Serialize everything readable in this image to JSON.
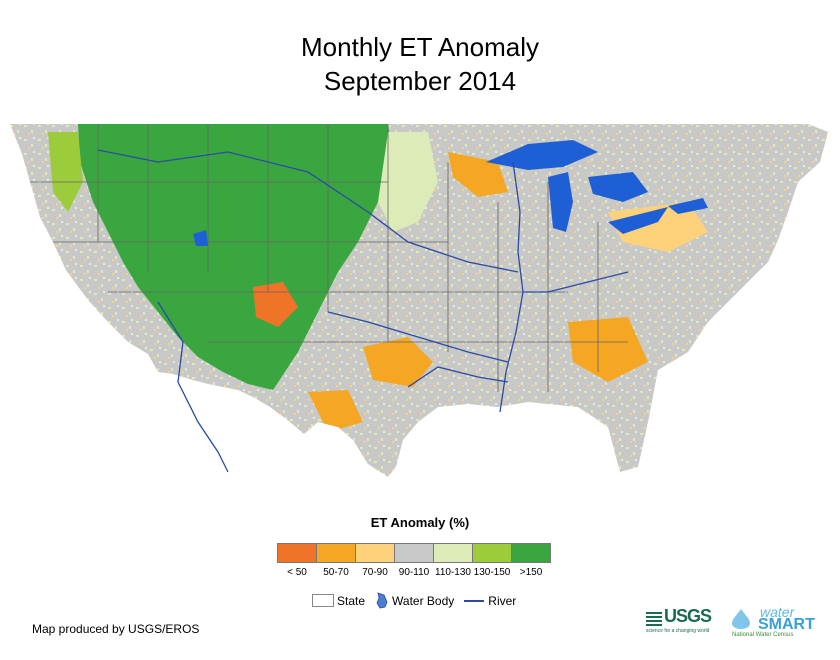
{
  "title_line1": "Monthly ET Anomaly",
  "title_line2": "September 2014",
  "legend": {
    "title": "ET Anomaly (%)",
    "classes": [
      {
        "label": "< 50",
        "color": "#f07427"
      },
      {
        "label": "50-70",
        "color": "#f5a623"
      },
      {
        "label": "70-90",
        "color": "#fdd27a"
      },
      {
        "label": "90-110",
        "color": "#c8c8c8"
      },
      {
        "label": "110-130",
        "color": "#dcebb8"
      },
      {
        "label": "130-150",
        "color": "#9ccb3c"
      },
      {
        "label": ">150",
        "color": "#3aa640"
      }
    ]
  },
  "keys": {
    "state": "State",
    "water_body": "Water Body",
    "river": "River"
  },
  "colors": {
    "water": "#1e5fd6",
    "river": "#2a4aa5",
    "state_line": "#666666"
  },
  "credit": "Map produced by USGS/EROS",
  "logos": {
    "usgs_text": "USGS",
    "usgs_sub": "science for a changing world",
    "watersmart_water": "water",
    "watersmart_smart": "SMART",
    "watersmart_sub": "National Water Census"
  }
}
